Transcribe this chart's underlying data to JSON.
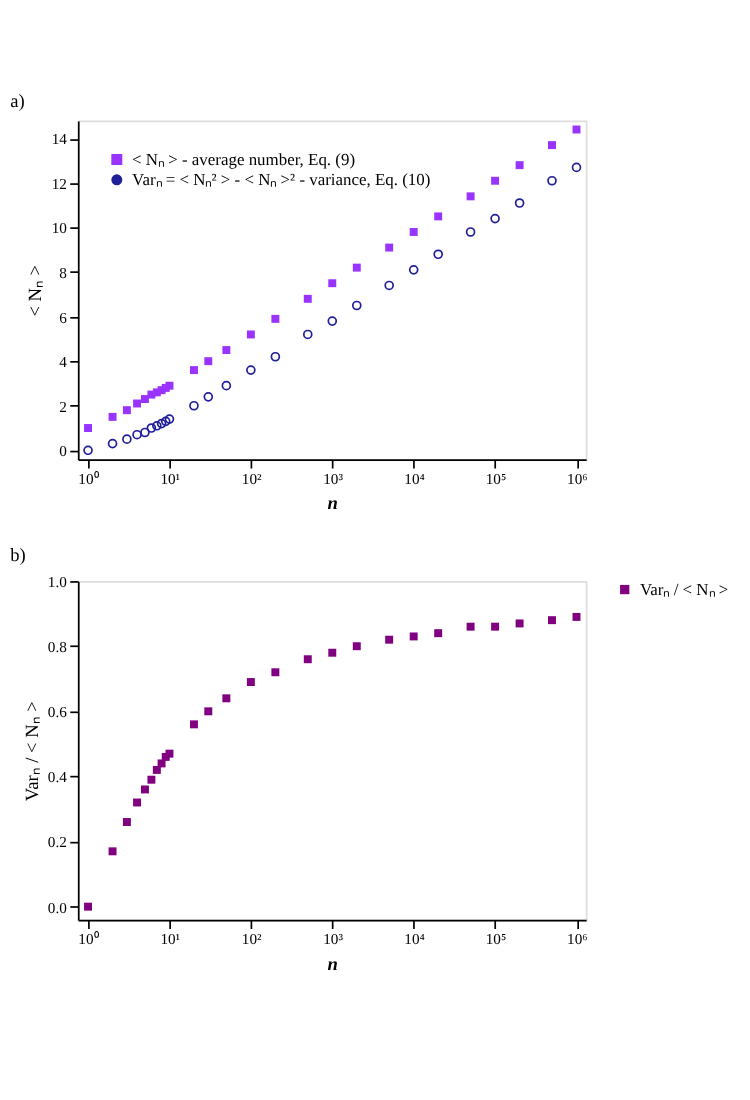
{
  "chart_data": [
    {
      "type": "scatter",
      "title": "a)",
      "xlabel": "n",
      "ylabel": "< Nₙ >",
      "log": "x",
      "grid": false,
      "legend": "top left",
      "x": [
        1,
        2,
        3,
        4,
        5,
        6,
        7,
        8,
        9,
        10,
        20,
        30,
        50,
        100,
        200,
        500,
        1000,
        2000,
        5000,
        10000,
        20000,
        50000,
        100000,
        200000,
        500000,
        1000000
      ],
      "xlim": [
        0.75,
        1300000
      ],
      "xticks": [
        {
          "value": 1,
          "label": "10⁰"
        },
        {
          "value": 10,
          "label": "10¹"
        },
        {
          "value": 100,
          "label": "10²"
        },
        {
          "value": 1000,
          "label": "10³"
        },
        {
          "value": 10000,
          "label": "10⁴"
        },
        {
          "value": 100000,
          "label": "10⁵"
        },
        {
          "value": 1000000,
          "label": "10⁶"
        }
      ],
      "ylim": [
        -0.4,
        14.8
      ],
      "yticks": [
        0,
        2,
        4,
        6,
        8,
        10,
        12,
        14
      ],
      "series": [
        {
          "name": "< Nₙ > - average number,  Eq. (9)",
          "color": "#9933ff",
          "marker": "square",
          "values": [
            1,
            1.5,
            1.8,
            2.1,
            2.3,
            2.5,
            2.6,
            2.7,
            2.8,
            2.9,
            3.6,
            4.0,
            4.5,
            5.2,
            5.9,
            6.8,
            7.5,
            8.2,
            9.1,
            9.8,
            10.5,
            11.4,
            12.1,
            12.8,
            13.7,
            14.4
          ]
        },
        {
          "name": "Varₙ = < Nₙ² > - < Nₙ >² - variance,  Eq. (10)",
          "color": "#1f1f99",
          "marker": "circle",
          "values": [
            0,
            0.3,
            0.5,
            0.7,
            0.8,
            1.0,
            1.1,
            1.2,
            1.3,
            1.4,
            2.0,
            2.4,
            2.9,
            3.6,
            4.2,
            5.2,
            5.8,
            6.5,
            7.4,
            8.1,
            8.8,
            9.8,
            10.4,
            11.1,
            12.1,
            12.7
          ]
        }
      ]
    },
    {
      "type": "scatter",
      "title": "b)",
      "xlabel": "n",
      "ylabel": "Varₙ / < Nₙ >",
      "log": "x",
      "grid": false,
      "legend": "right",
      "x": [
        1,
        2,
        3,
        4,
        5,
        6,
        7,
        8,
        9,
        10,
        20,
        30,
        50,
        100,
        200,
        500,
        1000,
        2000,
        5000,
        10000,
        20000,
        50000,
        100000,
        200000,
        500000,
        1000000
      ],
      "xlim": [
        0.75,
        1300000
      ],
      "xticks": [
        {
          "value": 1,
          "label": "10⁰"
        },
        {
          "value": 10,
          "label": "10¹"
        },
        {
          "value": 100,
          "label": "10²"
        },
        {
          "value": 1000,
          "label": "10³"
        },
        {
          "value": 10000,
          "label": "10⁴"
        },
        {
          "value": 100000,
          "label": "10⁵"
        },
        {
          "value": 1000000,
          "label": "10⁶"
        }
      ],
      "ylim": [
        -0.04,
        1.0
      ],
      "yticks": [
        {
          "value": 0,
          "label": "0.0"
        },
        {
          "value": 0.2,
          "label": "0.2"
        },
        {
          "value": 0.4,
          "label": "0.4"
        },
        {
          "value": 0.6,
          "label": "0.6"
        },
        {
          "value": 0.8,
          "label": "0.8"
        },
        {
          "value": 1,
          "label": "1.0"
        }
      ],
      "series": [
        {
          "name": "Varₙ / < Nₙ >",
          "color": "#800080",
          "marker": "square",
          "values": [
            0,
            0.17,
            0.26,
            0.32,
            0.36,
            0.39,
            0.42,
            0.44,
            0.46,
            0.47,
            0.56,
            0.6,
            0.64,
            0.69,
            0.72,
            0.76,
            0.78,
            0.8,
            0.82,
            0.83,
            0.84,
            0.86,
            0.86,
            0.87,
            0.88,
            0.89
          ]
        }
      ]
    }
  ]
}
